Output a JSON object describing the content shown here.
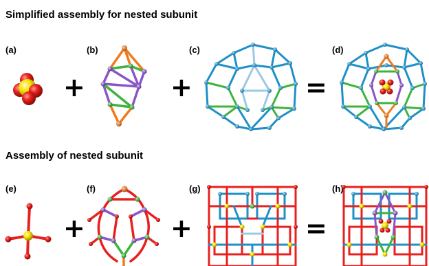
{
  "section1": {
    "title": "Simplified assembly for nested subunit"
  },
  "section2": {
    "title": "Assembly of nested subunit"
  },
  "panels": {
    "a": "(a)",
    "b": "(b)",
    "c": "(c)",
    "d": "(d)",
    "e": "(e)",
    "f": "(f)",
    "g": "(g)",
    "h": "(h)"
  },
  "operators": {
    "plus": "+",
    "equals": "="
  },
  "colors": {
    "oxygen": "#e8201e",
    "sulfur": "#f5e300",
    "blue_cage": "#1e90c8",
    "light_blue": "#9cc9e3",
    "green_cage": "#3cb43c",
    "purple_cage": "#8a55c8",
    "orange_cap": "#f07a1e"
  }
}
